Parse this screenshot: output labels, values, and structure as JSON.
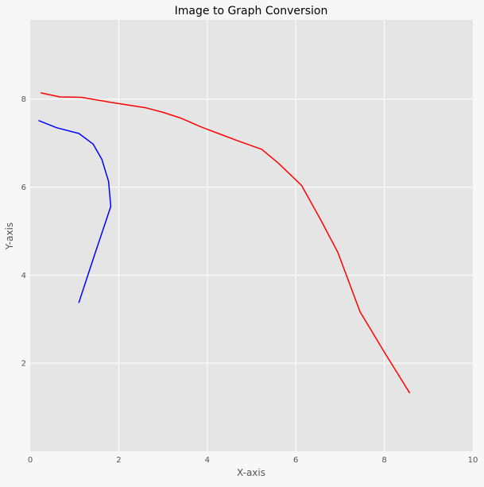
{
  "chart_data": {
    "type": "line",
    "title": "Image to Graph Conversion",
    "xlabel": "X-axis",
    "ylabel": "Y-axis",
    "xlim": [
      0,
      10
    ],
    "ylim": [
      0,
      9.8
    ],
    "x_ticks": [
      0,
      2,
      4,
      6,
      8,
      10
    ],
    "y_ticks": [
      2,
      4,
      6,
      8
    ],
    "grid": true,
    "colors": {
      "figure_bg": "#f7f7f7",
      "plot_bg": "#e5e5e5",
      "grid": "#ffffff",
      "text": "#000000",
      "tick_text": "#555555"
    },
    "series": [
      {
        "color": "#ff0000",
        "x": [
          0.25,
          0.67,
          1.16,
          1.8,
          2.62,
          3.0,
          3.4,
          3.83,
          4.25,
          4.7,
          5.23,
          5.6,
          6.13,
          6.55,
          6.95,
          7.45,
          8.0,
          8.57
        ],
        "y": [
          8.14,
          8.05,
          8.04,
          7.93,
          7.8,
          7.7,
          7.57,
          7.38,
          7.22,
          7.05,
          6.86,
          6.55,
          6.04,
          5.28,
          4.52,
          3.17,
          2.25,
          1.33
        ]
      },
      {
        "color": "#0000ff",
        "x": [
          0.2,
          0.6,
          1.1,
          1.42,
          1.62,
          1.77,
          1.82,
          1.45,
          1.1
        ],
        "y": [
          7.51,
          7.35,
          7.22,
          6.98,
          6.63,
          6.13,
          5.56,
          4.45,
          3.38
        ]
      }
    ]
  }
}
